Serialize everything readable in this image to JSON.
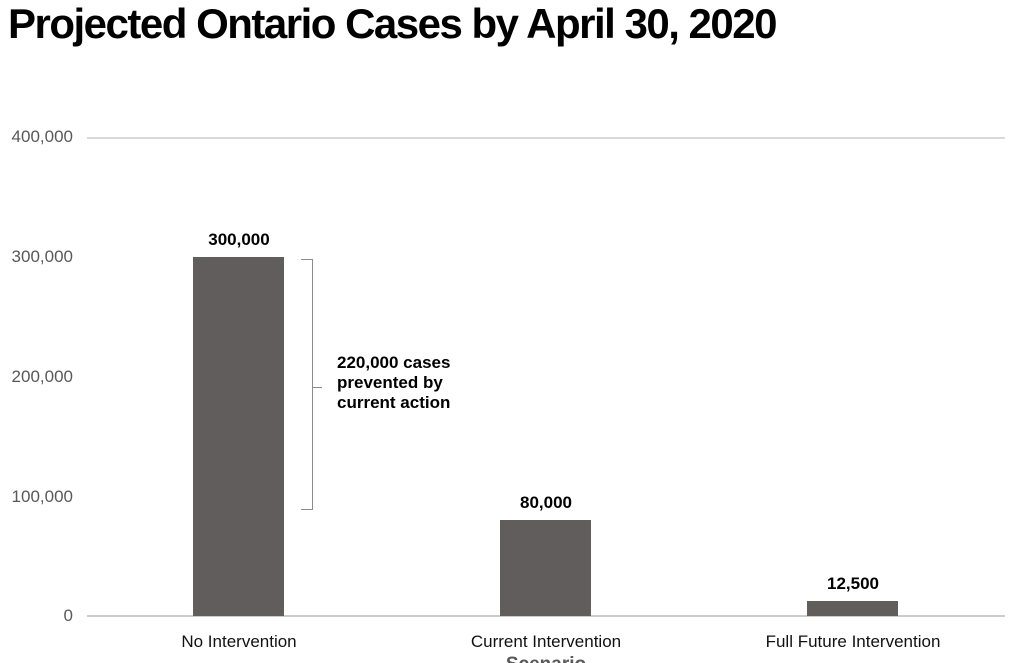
{
  "chart_data": {
    "type": "bar",
    "title": "Projected Ontario Cases by April 30, 2020",
    "xlabel": "Scenario",
    "ylabel": "",
    "categories": [
      "No Intervention",
      "Current Intervention",
      "Full Future Intervention"
    ],
    "values": [
      300000,
      80000,
      12500
    ],
    "value_labels": [
      "300,000",
      "80,000",
      "12,500"
    ],
    "ylim": [
      0,
      400000
    ],
    "ytick_labels": [
      "400,000",
      "300,000",
      "200,000",
      "100,000",
      "0"
    ],
    "grid": true,
    "legend": false,
    "colors": {
      "bar": "#615d5c",
      "gridline": "#d9d9d9",
      "tick_label": "#595959",
      "bracket": "#8c8c8c",
      "title": "#000000"
    },
    "annotation": {
      "lines": [
        "220,000 cases",
        "prevented by",
        "current action"
      ],
      "bracket_from_value": 300000,
      "bracket_to_value": 80000
    }
  }
}
